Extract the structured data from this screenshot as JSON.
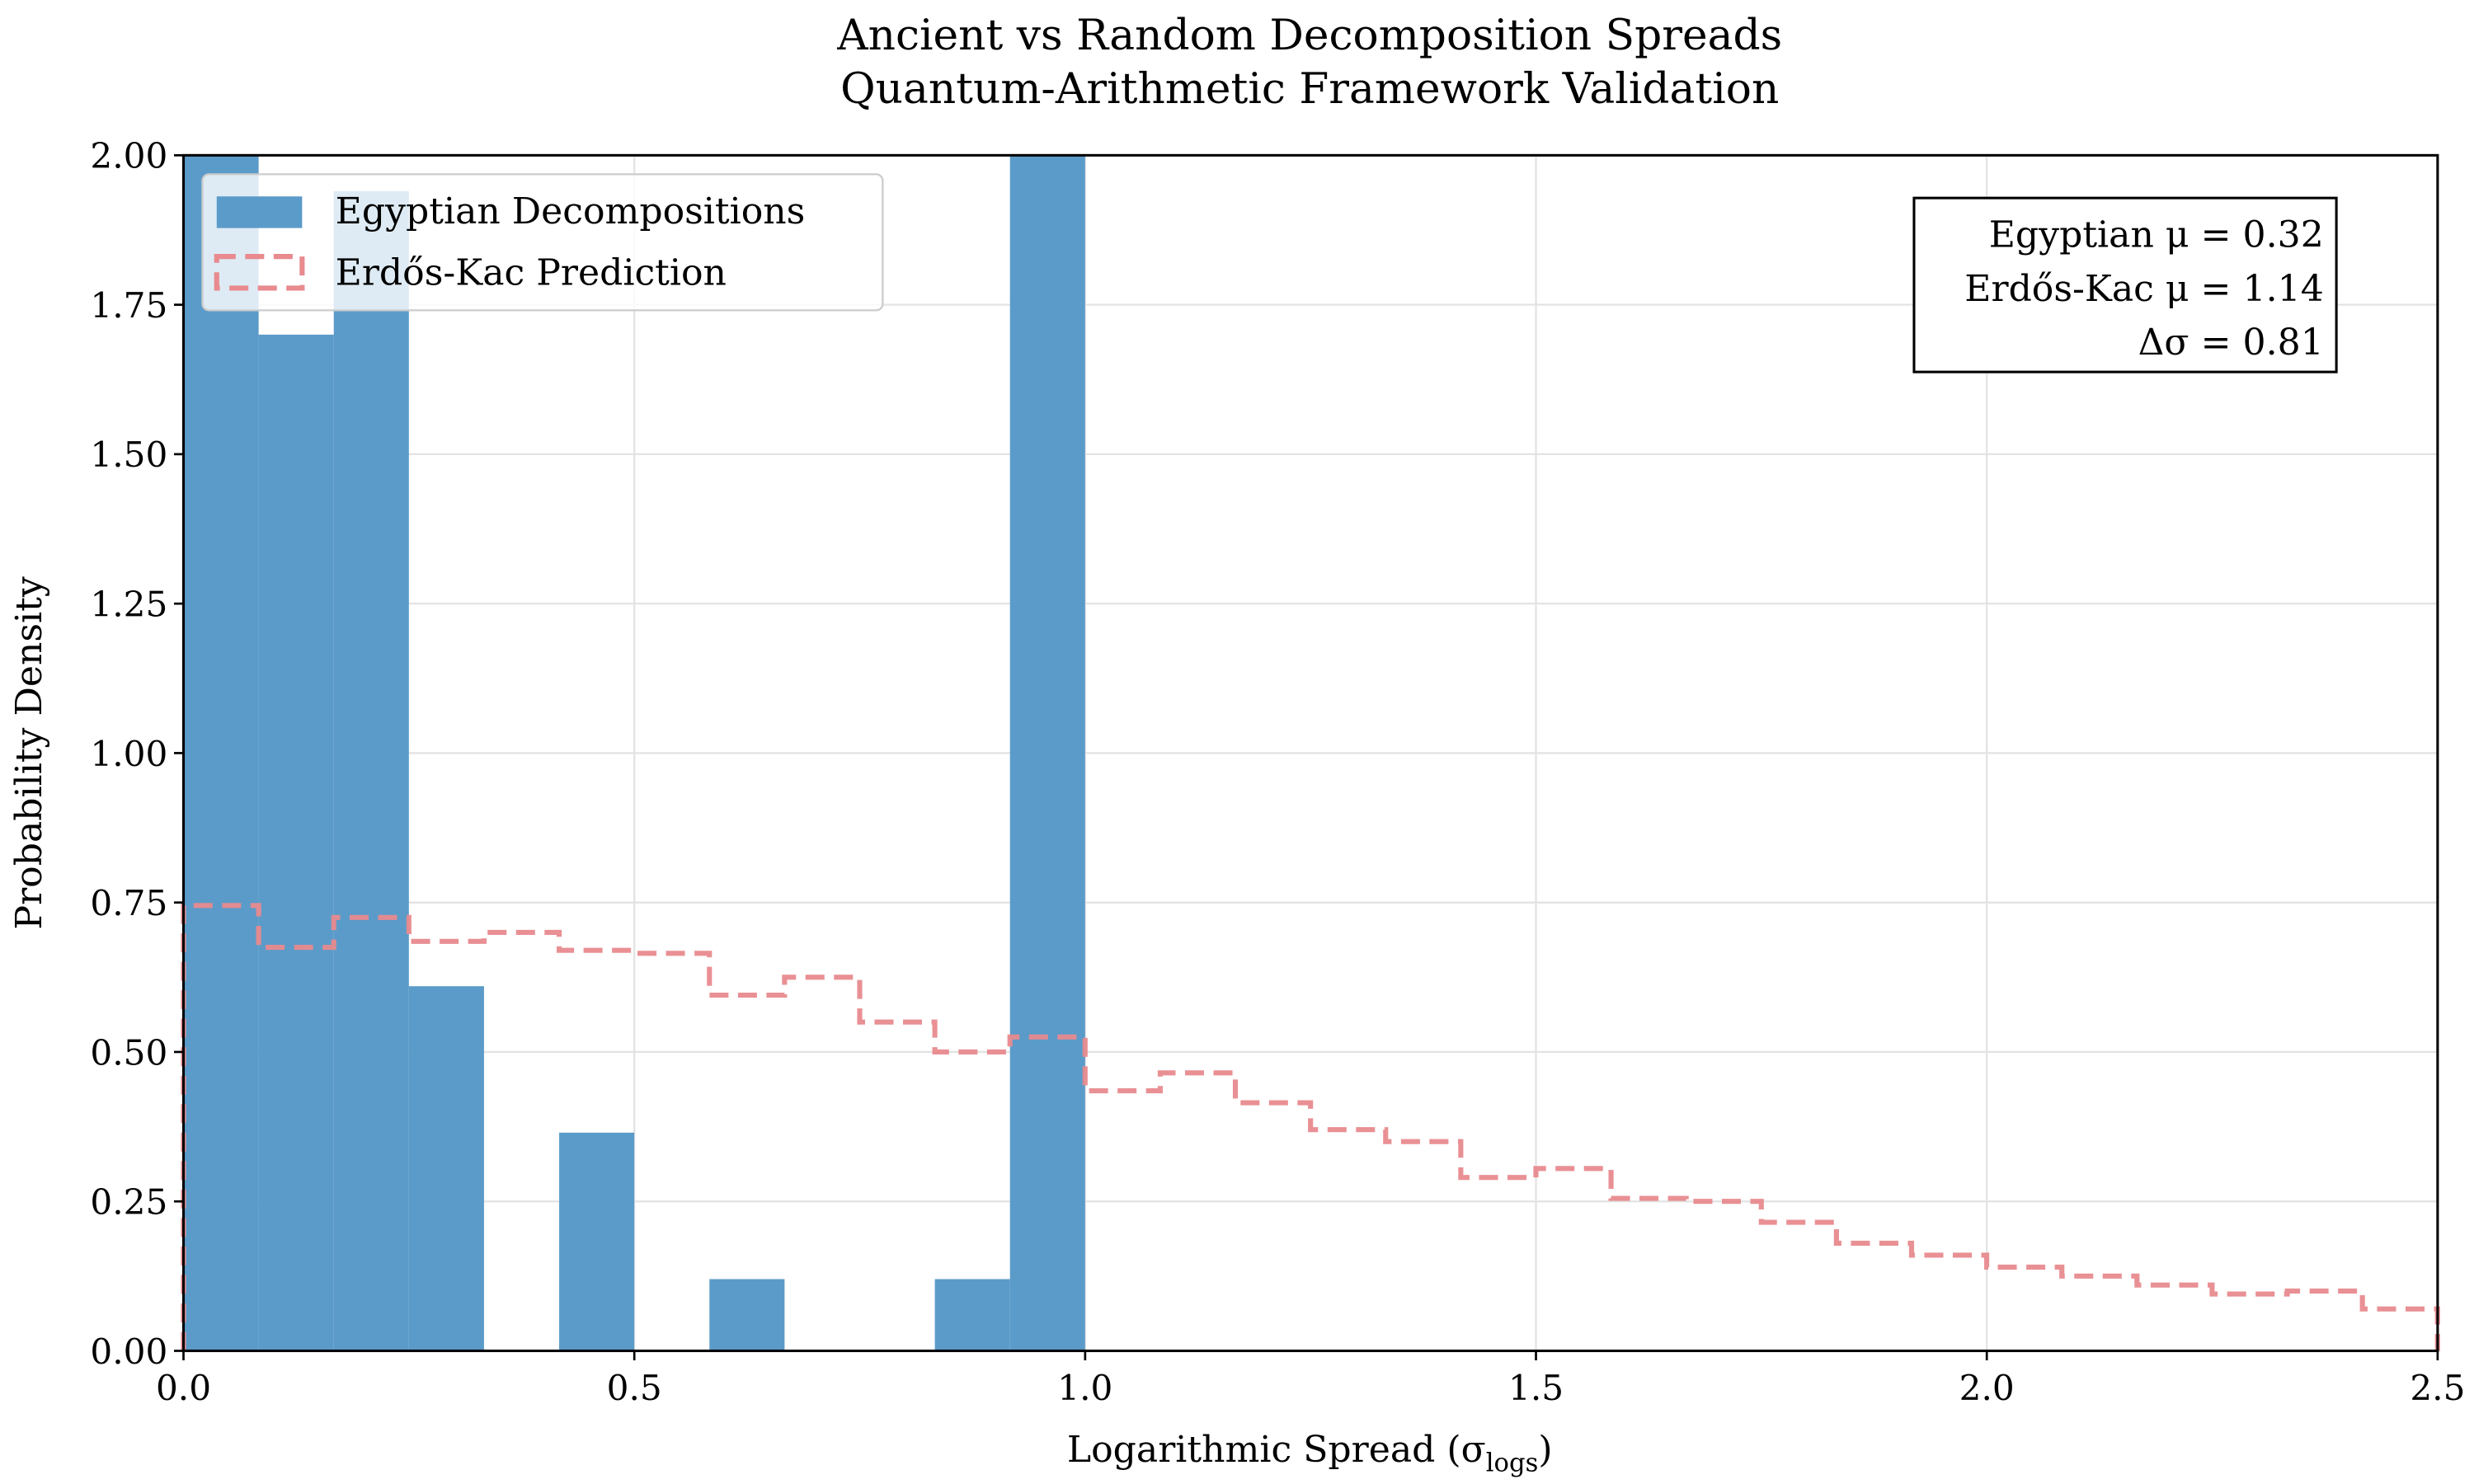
{
  "chart_data": {
    "type": "bar",
    "title": "Ancient vs Random Decomposition Spreads",
    "subtitle": "Quantum-Arithmetic Framework Validation",
    "xlabel": "Logarithmic Spread (σ",
    "xlabel_sub": "logs",
    "xlabel_end": ")",
    "ylabel": "Probability Density",
    "xlim": [
      0,
      2.5
    ],
    "ylim": [
      0,
      2.0
    ],
    "xticks": [
      "0.0",
      "0.5",
      "1.0",
      "1.5",
      "2.0",
      "2.5"
    ],
    "yticks": [
      "0.00",
      "0.25",
      "0.50",
      "0.75",
      "1.00",
      "1.25",
      "1.50",
      "1.75",
      "2.00"
    ],
    "grid": true,
    "legend_position": "top-left",
    "bin_edges_start": 0.0,
    "bin_width": 0.08333,
    "series": [
      {
        "name": "Egyptian Decompositions",
        "style": "filled histogram",
        "color": "#5b9bc9",
        "values": [
          2.0,
          1.7,
          1.94,
          0.61,
          0,
          0.365,
          0,
          0.12,
          0,
          0,
          0.12,
          2.0
        ]
      },
      {
        "name": "Erdős-Kac Prediction",
        "style": "dashed step histogram",
        "color": "#e88a8e",
        "values": [
          0.745,
          0.675,
          0.725,
          0.685,
          0.7,
          0.67,
          0.665,
          0.595,
          0.625,
          0.55,
          0.5,
          0.525,
          0.435,
          0.465,
          0.415,
          0.37,
          0.35,
          0.29,
          0.305,
          0.255,
          0.25,
          0.215,
          0.18,
          0.16,
          0.14,
          0.125,
          0.11,
          0.095,
          0.1,
          0.07
        ]
      }
    ],
    "annotation": {
      "line1": "Egyptian μ = 0.32",
      "line2": "Erdős-Kac μ = 1.14",
      "line3": "Δσ = 0.81"
    }
  }
}
